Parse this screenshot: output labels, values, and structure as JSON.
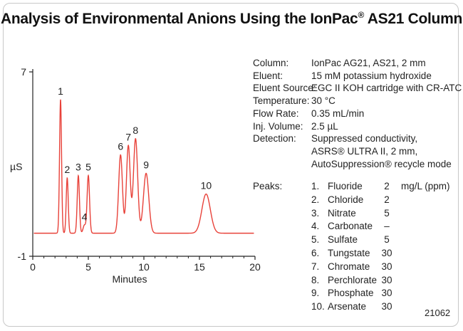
{
  "title": {
    "prefix": "Analysis of Environmental Anions Using the IonPac",
    "reg": "®",
    "suffix": " AS21 Column"
  },
  "conditions": [
    {
      "label": "Column:",
      "value": "IonPac AG21, AS21, 2 mm"
    },
    {
      "label": "Eluent:",
      "value": "15 mM potassium hydroxide"
    },
    {
      "label": "Eluent Source:",
      "value": "EGC II KOH cartridge with CR-ATC"
    },
    {
      "label": "Temperature:",
      "value": "30 °C"
    },
    {
      "label": "Flow Rate:",
      "value": "0.35 mL/min"
    },
    {
      "label": "Inj. Volume:",
      "value": "2.5 µL"
    },
    {
      "label": "Detection:",
      "value": "Suppressed conductivity,"
    },
    {
      "label": "",
      "value": "ASRS® ULTRA II, 2 mm,"
    },
    {
      "label": "",
      "value": "AutoSuppression® recycle mode"
    }
  ],
  "peaks_table": {
    "label": "Peaks:",
    "unit": "mg/L (ppm)",
    "rows": [
      {
        "num": "1.",
        "name": "Fluoride",
        "conc": "2"
      },
      {
        "num": "2.",
        "name": "Chloride",
        "conc": "2"
      },
      {
        "num": "3.",
        "name": "Nitrate",
        "conc": "5"
      },
      {
        "num": "4.",
        "name": "Carbonate",
        "conc": "–"
      },
      {
        "num": "5.",
        "name": "Sulfate",
        "conc": "5"
      },
      {
        "num": "6.",
        "name": "Tungstate",
        "conc": "30"
      },
      {
        "num": "7.",
        "name": "Chromate",
        "conc": "30"
      },
      {
        "num": "8.",
        "name": "Perchlorate",
        "conc": "30"
      },
      {
        "num": "9.",
        "name": "Phosphate",
        "conc": "30"
      },
      {
        "num": "10.",
        "name": "Arsenate",
        "conc": "30"
      }
    ]
  },
  "figure_id": "21062",
  "colors": {
    "trace": "#e8423a",
    "axis": "#222222"
  },
  "chart_data": {
    "type": "line",
    "xlabel": "Minutes",
    "ylabel": "µS",
    "xlim": [
      0,
      20
    ],
    "ylim": [
      -1,
      7
    ],
    "x_ticks": [
      0,
      5,
      10,
      15,
      20
    ],
    "y_ticks": [
      7,
      -1
    ],
    "baseline": 0.0,
    "peaks": [
      {
        "label": "1",
        "x": 2.5,
        "height": 5.8,
        "width": 0.09
      },
      {
        "label": "2",
        "x": 3.1,
        "height": 2.4,
        "width": 0.09
      },
      {
        "label": "3",
        "x": 4.1,
        "height": 2.5,
        "width": 0.1
      },
      {
        "label": "4",
        "x": 4.65,
        "height": 0.35,
        "width": 0.12
      },
      {
        "label": "5",
        "x": 5.0,
        "height": 2.5,
        "width": 0.11
      },
      {
        "label": "6",
        "x": 7.9,
        "height": 3.4,
        "width": 0.17
      },
      {
        "label": "7",
        "x": 8.6,
        "height": 3.8,
        "width": 0.17
      },
      {
        "label": "8",
        "x": 9.25,
        "height": 4.1,
        "width": 0.19
      },
      {
        "label": "9",
        "x": 10.2,
        "height": 2.6,
        "width": 0.24
      },
      {
        "label": "10",
        "x": 15.6,
        "height": 1.7,
        "width": 0.38
      }
    ]
  }
}
